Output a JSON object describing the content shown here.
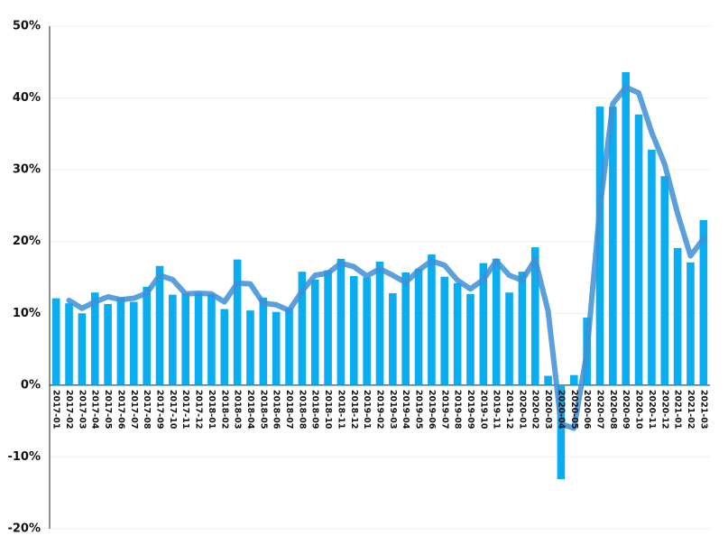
{
  "chart_data": {
    "type": "bar",
    "categories": [
      "2017-01",
      "2017-02",
      "2017-03",
      "2017-04",
      "2017-05",
      "2017-06",
      "2017-07",
      "2017-08",
      "2017-09",
      "2017-10",
      "2017-11",
      "2017-12",
      "2018-01",
      "2018-02",
      "2018-03",
      "2018-04",
      "2018-05",
      "2018-06",
      "2018-07",
      "2018-08",
      "2018-09",
      "2018-10",
      "2018-11",
      "2018-12",
      "2019-01",
      "2019-02",
      "2019-03",
      "2019-04",
      "2019-05",
      "2019-06",
      "2019-07",
      "2019-08",
      "2019-09",
      "2019-10",
      "2019-11",
      "2019-12",
      "2020-01",
      "2020-02",
      "2020-03",
      "2020-04",
      "2020-05",
      "2020-06",
      "2020-07",
      "2020-08",
      "2020-09",
      "2020-10",
      "2020-11",
      "2020-12",
      "2021-01",
      "2021-02",
      "2021-03"
    ],
    "series": [
      {
        "type": "bar",
        "color": "#0aaef0",
        "values": [
          12.1,
          11.4,
          10.0,
          12.9,
          11.3,
          12.2,
          11.6,
          13.7,
          16.6,
          12.6,
          12.8,
          12.9,
          12.7,
          10.6,
          17.5,
          10.4,
          12.2,
          10.2,
          10.7,
          15.8,
          14.7,
          16.0,
          17.6,
          15.2,
          15.0,
          17.2,
          12.8,
          15.7,
          16.2,
          18.2,
          15.1,
          14.2,
          12.7,
          17.0,
          17.6,
          12.9,
          15.8,
          19.2,
          1.3,
          -13.1,
          1.4,
          9.4,
          38.8,
          38.8,
          43.6,
          37.7,
          32.8,
          29.1,
          19.1,
          17.1,
          23.0
        ]
      },
      {
        "type": "line",
        "color": "#3d8fd6",
        "values": [
          null,
          11.8,
          10.7,
          11.6,
          12.3,
          11.9,
          12.1,
          12.8,
          15.3,
          14.7,
          12.7,
          12.8,
          12.7,
          11.6,
          14.2,
          14.1,
          11.4,
          11.2,
          10.4,
          13.1,
          15.3,
          15.6,
          17.0,
          16.5,
          15.2,
          16.2,
          15.3,
          14.3,
          16.0,
          17.3,
          16.7,
          14.6,
          13.4,
          14.7,
          17.3,
          15.3,
          14.6,
          17.5,
          10.3,
          -5.4,
          -6.0,
          4.6,
          24.7,
          39.2,
          41.5,
          40.7,
          35.2,
          30.8,
          23.9,
          18.0,
          20.4
        ]
      }
    ],
    "ylim": [
      -20,
      50
    ],
    "yticks": [
      {
        "value": -20,
        "label": "-20%"
      },
      {
        "value": -10,
        "label": "-10%"
      },
      {
        "value": 0,
        "label": "0%"
      },
      {
        "value": 10,
        "label": "10%"
      },
      {
        "value": 20,
        "label": "20%"
      },
      {
        "value": 30,
        "label": "30%"
      },
      {
        "value": 40,
        "label": "40%"
      },
      {
        "value": 50,
        "label": "50%"
      }
    ],
    "grid": true
  }
}
